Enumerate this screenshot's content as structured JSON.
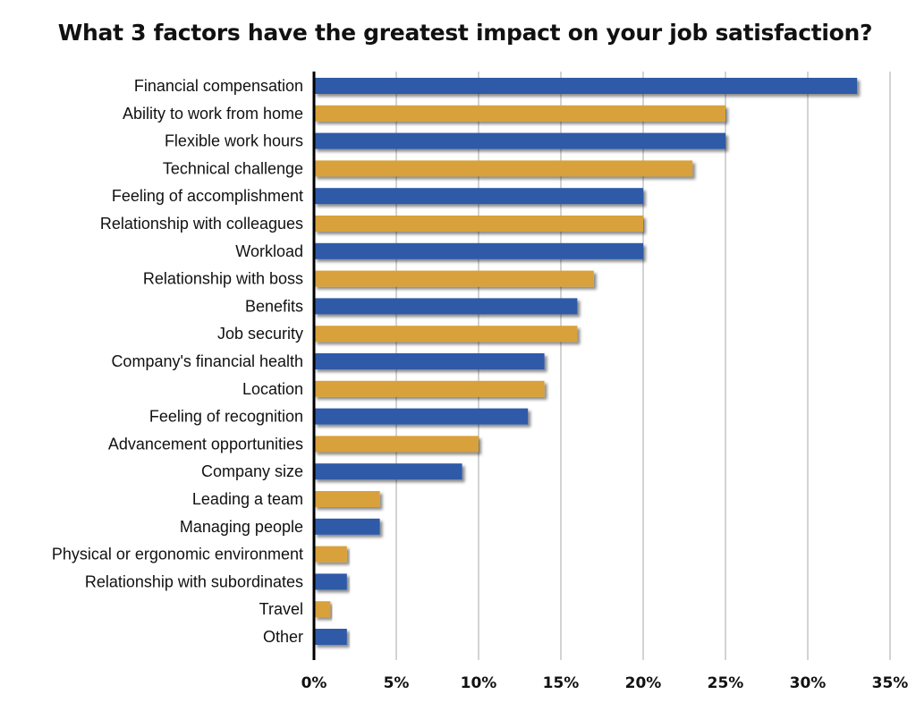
{
  "chart_data": {
    "type": "bar",
    "orientation": "horizontal",
    "title": "What 3 factors have the greatest impact on your job satisfaction?",
    "xlabel": "",
    "ylabel": "",
    "xlim": [
      0,
      35
    ],
    "xticks": [
      0,
      5,
      10,
      15,
      20,
      25,
      30,
      35
    ],
    "xtick_labels": [
      "0%",
      "5%",
      "10%",
      "15%",
      "20%",
      "25%",
      "30%",
      "35%"
    ],
    "grid": true,
    "colors": [
      "#2e5aa8",
      "#d8a13a"
    ],
    "categories": [
      "Financial compensation",
      "Ability to work from home",
      "Flexible work hours",
      "Technical challenge",
      "Feeling of accomplishment",
      "Relationship with colleagues",
      "Workload",
      "Relationship with boss",
      "Benefits",
      "Job security",
      "Company's financial health",
      "Location",
      "Feeling of recognition",
      "Advancement opportunities",
      "Company size",
      "Leading a team",
      "Managing people",
      "Physical or ergonomic environment",
      "Relationship with subordinates",
      "Travel",
      "Other"
    ],
    "values": [
      33,
      25,
      25,
      23,
      20,
      20,
      20,
      17,
      16,
      16,
      14,
      14,
      13,
      10,
      9,
      4,
      4,
      2,
      2,
      1,
      2
    ]
  }
}
